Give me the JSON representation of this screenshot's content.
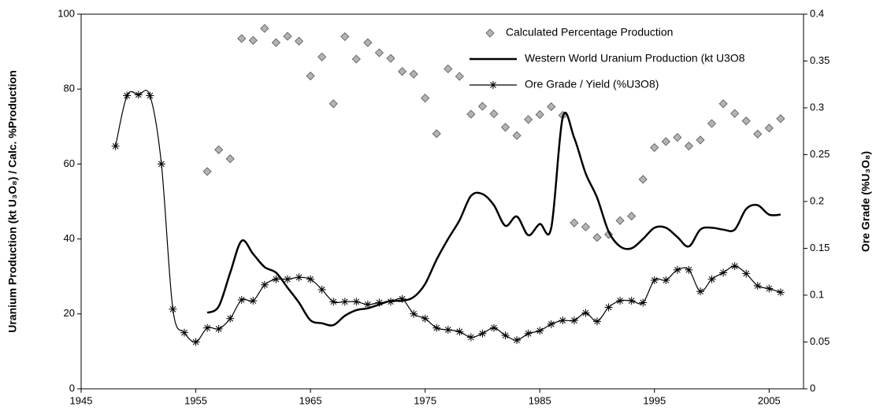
{
  "chart_data": {
    "type": "line",
    "y_label": "Uranium Production (kt U₃O₈) / Calc. %Production",
    "y2_label": "Ore Grade (%U₃O₈)",
    "xlim": [
      1945,
      2008
    ],
    "xticks": [
      1945,
      1955,
      1965,
      1975,
      1985,
      1995,
      2005
    ],
    "ylim": [
      0,
      100
    ],
    "yticks": [
      0,
      20,
      40,
      60,
      80,
      100
    ],
    "y2lim": [
      0,
      0.4
    ],
    "y2ticks": [
      0,
      0.05,
      0.1,
      0.15,
      0.2,
      0.25,
      0.3,
      0.35,
      0.4
    ],
    "legend": "top-right",
    "series": [
      {
        "name": "Calculated Percentage Production",
        "kind": "scatter",
        "color": "#b3b3b3",
        "x": [
          1956,
          1957,
          1958,
          1959,
          1960,
          1961,
          1962,
          1963,
          1964,
          1965,
          1966,
          1967,
          1968,
          1969,
          1970,
          1971,
          1972,
          1973,
          1974,
          1975,
          1976,
          1977,
          1978,
          1979,
          1980,
          1981,
          1982,
          1983,
          1984,
          1985,
          1986,
          1987,
          1988,
          1989,
          1990,
          1991,
          1992,
          1993,
          1994,
          1995,
          1996,
          1997,
          1998,
          1999,
          2000,
          2001,
          2002,
          2003,
          2004,
          2005,
          2006
        ],
        "values": [
          58,
          63.8,
          61.4,
          93.5,
          93,
          96.2,
          92.4,
          94.1,
          92.8,
          83.5,
          88.6,
          76.1,
          94,
          88,
          92.4,
          89.7,
          88.2,
          84.7,
          84,
          77.6,
          68.1,
          85.4,
          83.4,
          73.3,
          75.4,
          73.4,
          69.8,
          67.6,
          71.9,
          73.2,
          75.3,
          73,
          44.3,
          43.2,
          40.4,
          41.2,
          44.9,
          46.1,
          55.9,
          64.4,
          66,
          67.1,
          64.8,
          66.4,
          70.8,
          76.1,
          73.5,
          71.5,
          68,
          69.6,
          72.1
        ]
      },
      {
        "name": "Western World Uranium Production (kt U3O8",
        "kind": "line",
        "color": "#000000",
        "x": [
          1956,
          1957,
          1958,
          1959,
          1960,
          1961,
          1962,
          1963,
          1964,
          1965,
          1966,
          1967,
          1968,
          1969,
          1970,
          1971,
          1972,
          1973,
          1974,
          1975,
          1976,
          1977,
          1978,
          1979,
          1980,
          1981,
          1982,
          1983,
          1984,
          1985,
          1986,
          1987,
          1988,
          1989,
          1990,
          1991,
          1992,
          1993,
          1994,
          1995,
          1996,
          1997,
          1998,
          1999,
          2000,
          2001,
          2002,
          2003,
          2004,
          2005,
          2006
        ],
        "values": [
          20.3,
          22,
          31,
          39.5,
          36,
          32.5,
          31,
          27,
          23,
          18.3,
          17.5,
          17,
          19.5,
          21,
          21.5,
          22.5,
          23.5,
          23.5,
          24.5,
          28,
          34.5,
          40,
          45,
          51.5,
          52,
          49,
          43.5,
          46,
          41,
          44,
          43,
          72.5,
          67,
          57.5,
          51,
          42,
          38,
          37.5,
          40,
          43,
          43,
          40.5,
          38,
          42.5,
          43,
          42.5,
          42.5,
          48,
          49,
          46.5,
          46.5
        ]
      },
      {
        "name": "Ore Grade / Yield (%U3O8)",
        "kind": "line-star",
        "color": "#000000",
        "axis": "y2",
        "x": [
          1948,
          1949,
          1950,
          1951,
          1952,
          1953,
          1954,
          1955,
          1956,
          1957,
          1958,
          1959,
          1960,
          1961,
          1962,
          1963,
          1964,
          1965,
          1966,
          1967,
          1968,
          1969,
          1970,
          1971,
          1972,
          1973,
          1974,
          1975,
          1976,
          1977,
          1978,
          1979,
          1980,
          1981,
          1982,
          1983,
          1984,
          1985,
          1986,
          1987,
          1988,
          1989,
          1990,
          1991,
          1992,
          1993,
          1994,
          1995,
          1996,
          1997,
          1998,
          1999,
          2000,
          2001,
          2002,
          2003,
          2004,
          2005,
          2006
        ],
        "values": [
          0.259,
          0.313,
          0.314,
          0.313,
          0.24,
          0.085,
          0.06,
          0.05,
          0.065,
          0.064,
          0.075,
          0.095,
          0.094,
          0.111,
          0.117,
          0.117,
          0.119,
          0.117,
          0.106,
          0.093,
          0.093,
          0.093,
          0.09,
          0.092,
          0.093,
          0.096,
          0.08,
          0.075,
          0.065,
          0.063,
          0.061,
          0.055,
          0.059,
          0.065,
          0.057,
          0.052,
          0.059,
          0.062,
          0.069,
          0.073,
          0.073,
          0.081,
          0.072,
          0.087,
          0.094,
          0.094,
          0.092,
          0.116,
          0.116,
          0.127,
          0.127,
          0.104,
          0.117,
          0.124,
          0.131,
          0.123,
          0.11,
          0.107,
          0.103
        ]
      }
    ]
  }
}
